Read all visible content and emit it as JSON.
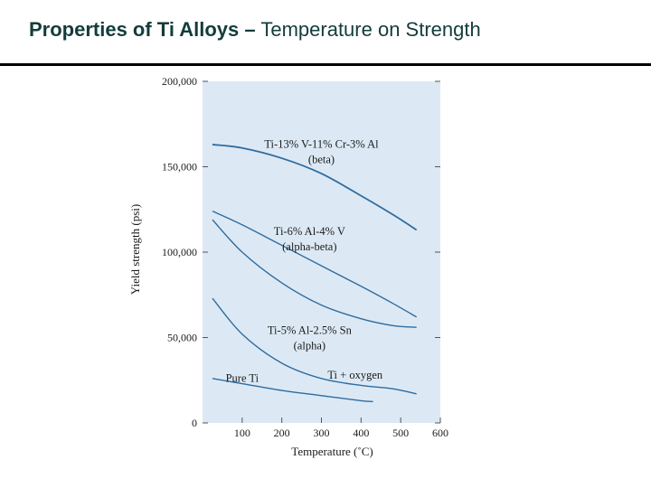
{
  "slide": {
    "title_bold": "Properties of Ti Alloys –",
    "title_rest": " Temperature on Strength"
  },
  "chart_data": {
    "type": "line",
    "xlabel": "Temperature (˚C)",
    "ylabel": "Yield strength (psi)",
    "xlim": [
      0,
      600
    ],
    "ylim": [
      0,
      200000
    ],
    "xticks": [
      100,
      200,
      300,
      400,
      500,
      600
    ],
    "xtick_labels": [
      "100",
      "200",
      "300",
      "400",
      "500",
      "600"
    ],
    "yticks": [
      0,
      50000,
      100000,
      150000,
      200000
    ],
    "ytick_labels": [
      "0",
      "50,000",
      "100,000",
      "150,000",
      "200,000"
    ],
    "grid": false,
    "colors": {
      "plot_bg": "#dce9f5",
      "line": "#2f6c9f",
      "axis": "#555555"
    },
    "series": [
      {
        "lines": [
          "Ti-13% V-11% Cr-3% Al",
          "(beta)"
        ],
        "label_at": [
          300,
          161000
        ],
        "x": [
          25,
          100,
          200,
          300,
          400,
          480,
          540
        ],
        "y": [
          163000,
          161000,
          155000,
          146000,
          133000,
          122000,
          113000
        ]
      },
      {
        "lines": [
          "Ti-6% Al-4% V",
          "(alpha-beta)"
        ],
        "label_at": [
          270,
          110000
        ],
        "x": [
          25,
          100,
          200,
          300,
          400,
          480,
          540
        ],
        "y": [
          124000,
          116000,
          104000,
          92000,
          80000,
          70000,
          62000
        ]
      },
      {
        "lines": [
          "Ti-5% Al-2.5% Sn",
          "(alpha)"
        ],
        "label_at": [
          270,
          52000
        ],
        "x": [
          25,
          100,
          200,
          300,
          400,
          480,
          540
        ],
        "y": [
          119000,
          100000,
          82000,
          69000,
          61000,
          57000,
          56000
        ]
      },
      {
        "lines": [
          "Ti + oxygen"
        ],
        "label_at": [
          385,
          26000
        ],
        "x": [
          25,
          100,
          200,
          300,
          400,
          480,
          540
        ],
        "y": [
          73000,
          52000,
          35000,
          26000,
          22000,
          20000,
          17000
        ]
      },
      {
        "lines": [
          "Pure Ti"
        ],
        "label_at": [
          100,
          24000
        ],
        "x": [
          25,
          100,
          200,
          300,
          400,
          430
        ],
        "y": [
          26000,
          23000,
          19000,
          16000,
          13000,
          12500
        ]
      }
    ]
  }
}
